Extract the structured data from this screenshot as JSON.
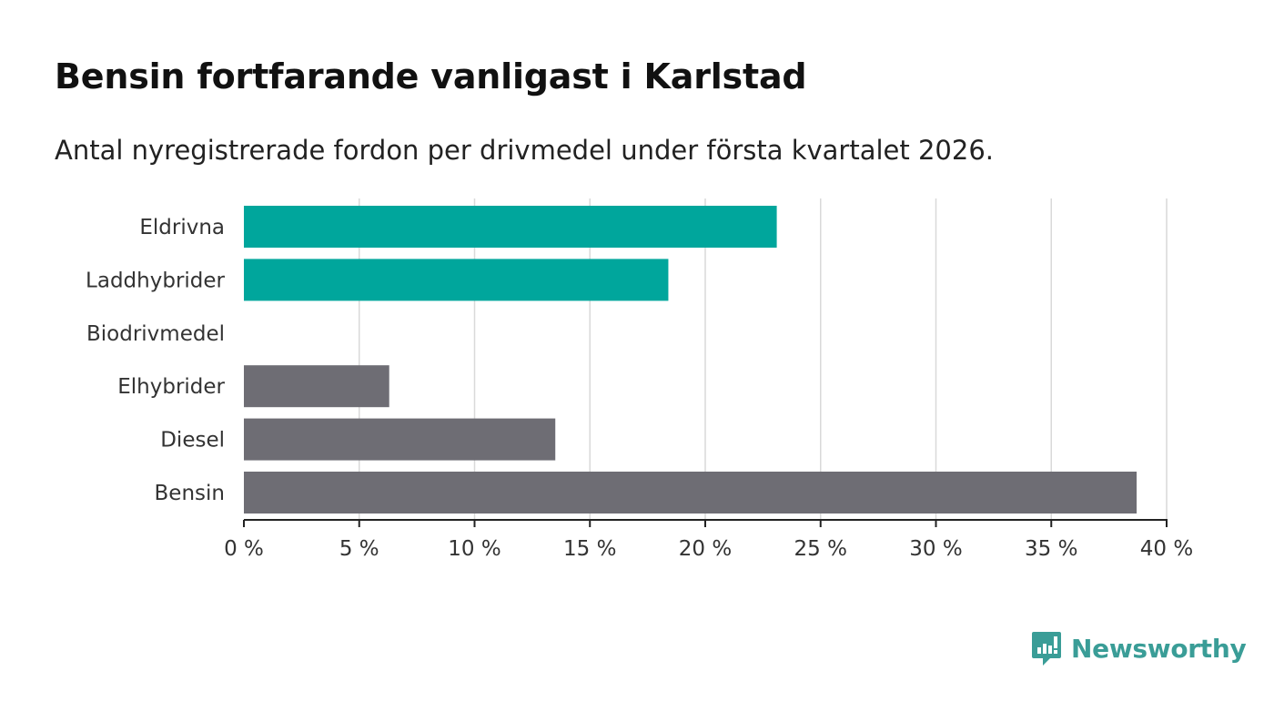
{
  "header": {
    "title": "Bensin fortfarande vanligast i Karlstad",
    "subtitle": "Antal nyregistrerade fordon per drivmedel under första kvartalet 2026."
  },
  "logo": {
    "text": "Newsworthy",
    "icon": "bar-chart-speech-bubble-icon",
    "color": "#3a9d97"
  },
  "colors": {
    "highlight": "#00a69c",
    "default": "#6e6d74",
    "grid": "#d9d9d9",
    "axis": "#222222"
  },
  "chart_data": {
    "type": "bar",
    "orientation": "horizontal",
    "categories": [
      "Eldrivna",
      "Laddhybrider",
      "Biodrivmedel",
      "Elhybrider",
      "Diesel",
      "Bensin"
    ],
    "values": [
      23.1,
      18.4,
      0,
      6.3,
      13.5,
      38.7
    ],
    "bar_colors": [
      "#00a69c",
      "#00a69c",
      "#6e6d74",
      "#6e6d74",
      "#6e6d74",
      "#6e6d74"
    ],
    "xlim": [
      0,
      40
    ],
    "x_ticks": [
      0,
      5,
      10,
      15,
      20,
      25,
      30,
      35,
      40
    ],
    "x_tick_labels": [
      "0 %",
      "5 %",
      "10 %",
      "15 %",
      "20 %",
      "25 %",
      "30 %",
      "35 %",
      "40 %"
    ],
    "grid": true
  }
}
